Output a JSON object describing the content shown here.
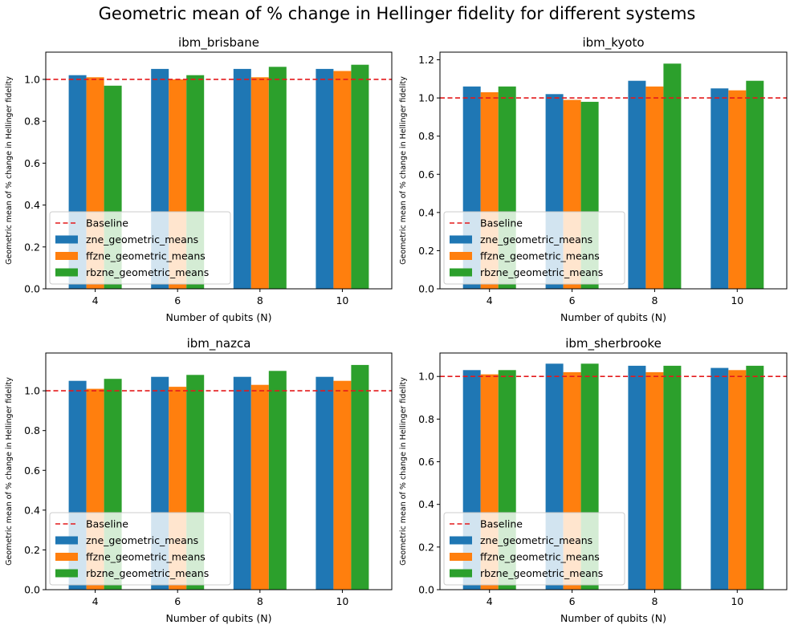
{
  "figure": {
    "title": "Geometric mean of % change in Hellinger fidelity for different systems"
  },
  "colors": {
    "zne": "#1f77b4",
    "ffzne": "#ff7f0e",
    "rbzne": "#2ca02c",
    "baseline": "#e41a1c"
  },
  "legend": {
    "placement": "lower-left",
    "entries": [
      "Baseline",
      "zne_geometric_means",
      "ffzne_geometric_means",
      "rbzne_geometric_means"
    ]
  },
  "chart_data": [
    {
      "type": "bar",
      "title": "ibm_brisbane",
      "xlabel": "Number of qubits (N)",
      "ylabel": "Geometric mean of % change in Hellinger fidelity",
      "categories": [
        "4",
        "6",
        "8",
        "10"
      ],
      "ylim": [
        0,
        1.13
      ],
      "yticks": [
        "0.0",
        "0.2",
        "0.4",
        "0.6",
        "0.8",
        "1.0"
      ],
      "baseline": 1.0,
      "series": [
        {
          "name": "zne_geometric_means",
          "values": [
            1.02,
            1.05,
            1.05,
            1.05
          ]
        },
        {
          "name": "ffzne_geometric_means",
          "values": [
            1.01,
            1.0,
            1.01,
            1.04
          ]
        },
        {
          "name": "rbzne_geometric_means",
          "values": [
            0.97,
            1.02,
            1.06,
            1.07
          ]
        }
      ]
    },
    {
      "type": "bar",
      "title": "ibm_kyoto",
      "xlabel": "Number of qubits (N)",
      "ylabel": "Geometric mean of % change in Hellinger fidelity",
      "categories": [
        "4",
        "6",
        "8",
        "10"
      ],
      "ylim": [
        0,
        1.24
      ],
      "yticks": [
        "0.0",
        "0.2",
        "0.4",
        "0.6",
        "0.8",
        "1.0",
        "1.2"
      ],
      "baseline": 1.0,
      "series": [
        {
          "name": "zne_geometric_means",
          "values": [
            1.06,
            1.02,
            1.09,
            1.05
          ]
        },
        {
          "name": "ffzne_geometric_means",
          "values": [
            1.03,
            0.99,
            1.06,
            1.04
          ]
        },
        {
          "name": "rbzne_geometric_means",
          "values": [
            1.06,
            0.98,
            1.18,
            1.09
          ]
        }
      ]
    },
    {
      "type": "bar",
      "title": "ibm_nazca",
      "xlabel": "Number of qubits (N)",
      "ylabel": "Geometric mean of % change in Hellinger fidelity",
      "categories": [
        "4",
        "6",
        "8",
        "10"
      ],
      "ylim": [
        0,
        1.19
      ],
      "yticks": [
        "0.0",
        "0.2",
        "0.4",
        "0.6",
        "0.8",
        "1.0"
      ],
      "baseline": 1.0,
      "series": [
        {
          "name": "zne_geometric_means",
          "values": [
            1.05,
            1.07,
            1.07,
            1.07
          ]
        },
        {
          "name": "ffzne_geometric_means",
          "values": [
            1.01,
            1.02,
            1.03,
            1.05
          ]
        },
        {
          "name": "rbzne_geometric_means",
          "values": [
            1.06,
            1.08,
            1.1,
            1.13
          ]
        }
      ]
    },
    {
      "type": "bar",
      "title": "ibm_sherbrooke",
      "xlabel": "Number of qubits (N)",
      "ylabel": "Geometric mean of % change in Hellinger fidelity",
      "categories": [
        "4",
        "6",
        "8",
        "10"
      ],
      "ylim": [
        0,
        1.11
      ],
      "yticks": [
        "0.0",
        "0.2",
        "0.4",
        "0.6",
        "0.8",
        "1.0"
      ],
      "baseline": 1.0,
      "series": [
        {
          "name": "zne_geometric_means",
          "values": [
            1.03,
            1.06,
            1.05,
            1.04
          ]
        },
        {
          "name": "ffzne_geometric_means",
          "values": [
            1.01,
            1.02,
            1.02,
            1.03
          ]
        },
        {
          "name": "rbzne_geometric_means",
          "values": [
            1.03,
            1.06,
            1.05,
            1.05
          ]
        }
      ]
    }
  ]
}
